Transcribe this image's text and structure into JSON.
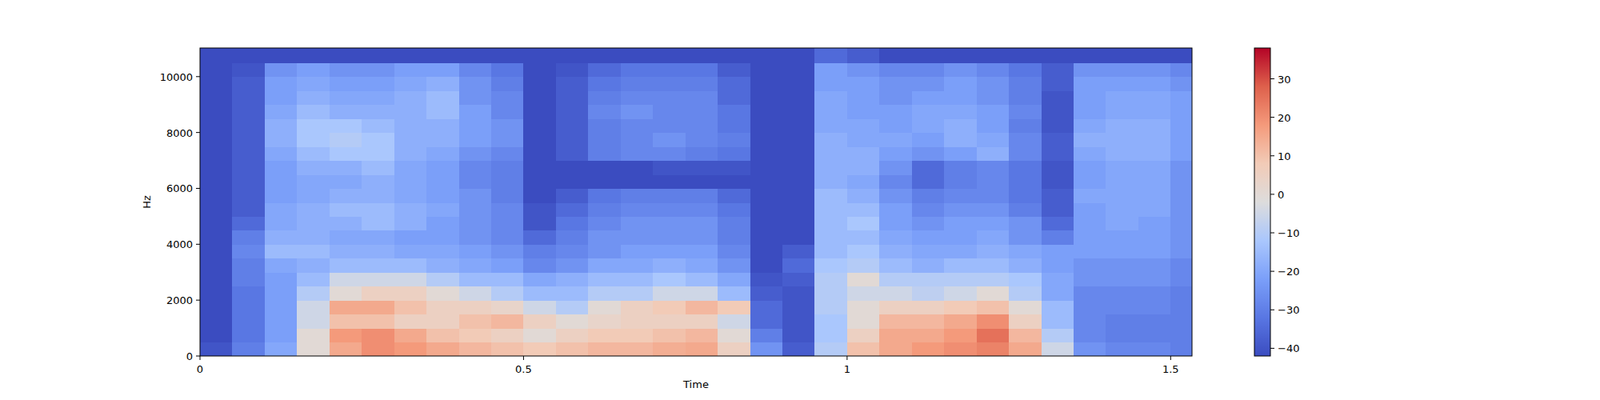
{
  "chart_data": {
    "type": "heatmap",
    "x_label": "Time",
    "y_label": "Hz",
    "xlim": [
      0,
      1.533
    ],
    "ylim": [
      0,
      11025
    ],
    "xticks": [
      0,
      0.5,
      1,
      1.5
    ],
    "yticks": [
      0,
      2000,
      4000,
      6000,
      8000,
      10000
    ],
    "x": [
      0,
      0.05,
      0.1,
      0.15,
      0.2,
      0.25,
      0.3,
      0.35,
      0.4,
      0.45,
      0.5,
      0.55,
      0.6,
      0.65,
      0.7,
      0.75,
      0.8,
      0.85,
      0.9,
      0.95,
      1.0,
      1.05,
      1.1,
      1.15,
      1.2,
      1.25,
      1.3,
      1.35,
      1.4,
      1.45,
      1.5
    ],
    "y": [
      0,
      500,
      1000,
      1500,
      2000,
      2500,
      3000,
      3500,
      4000,
      4500,
      5000,
      5500,
      6000,
      6500,
      7000,
      7500,
      8000,
      8500,
      9000,
      9500,
      10000,
      10500
    ],
    "values": [
      [
        -40,
        -30,
        -20,
        0,
        15,
        20,
        18,
        15,
        12,
        10,
        8,
        10,
        12,
        12,
        14,
        15,
        5,
        -25,
        -38,
        -10,
        10,
        15,
        18,
        20,
        22,
        15,
        -5,
        -25,
        -28,
        -28,
        -30
      ],
      [
        -42,
        -32,
        -22,
        0,
        18,
        20,
        15,
        10,
        8,
        5,
        0,
        5,
        8,
        8,
        10,
        12,
        0,
        -30,
        -40,
        -12,
        5,
        15,
        15,
        18,
        25,
        12,
        -10,
        -28,
        -30,
        -30,
        -30
      ],
      [
        -42,
        -32,
        -22,
        -5,
        10,
        10,
        5,
        5,
        10,
        12,
        5,
        0,
        3,
        5,
        5,
        5,
        -5,
        -35,
        -40,
        -12,
        0,
        12,
        12,
        15,
        20,
        5,
        -15,
        -28,
        -30,
        -30,
        -30
      ],
      [
        -42,
        -32,
        -22,
        -5,
        15,
        15,
        10,
        5,
        5,
        3,
        -5,
        -10,
        0,
        5,
        8,
        12,
        8,
        -35,
        -40,
        -10,
        0,
        5,
        5,
        8,
        10,
        0,
        -15,
        -28,
        -28,
        -28,
        -30
      ],
      [
        -42,
        -32,
        -22,
        -10,
        0,
        5,
        5,
        0,
        -5,
        -10,
        -15,
        -15,
        -10,
        -10,
        -5,
        -5,
        -15,
        -38,
        -40,
        -10,
        -5,
        -5,
        -8,
        -5,
        0,
        -10,
        -20,
        -28,
        -28,
        -28,
        -30
      ],
      [
        -42,
        -30,
        -22,
        -15,
        -5,
        -5,
        -5,
        -10,
        -15,
        -15,
        -20,
        -18,
        -15,
        -15,
        -12,
        -15,
        -20,
        -40,
        -38,
        -10,
        0,
        -10,
        -10,
        -10,
        -10,
        -12,
        -20,
        -25,
        -25,
        -25,
        -28
      ],
      [
        -42,
        -30,
        -20,
        -18,
        -15,
        -15,
        -15,
        -18,
        -20,
        -22,
        -28,
        -25,
        -20,
        -20,
        -18,
        -20,
        -25,
        -42,
        -35,
        -12,
        -10,
        -15,
        -18,
        -15,
        -15,
        -18,
        -22,
        -25,
        -25,
        -25,
        -28
      ],
      [
        -42,
        -28,
        -15,
        -15,
        -18,
        -18,
        -20,
        -20,
        -22,
        -25,
        -30,
        -28,
        -25,
        -22,
        -22,
        -22,
        -28,
        -42,
        -38,
        -15,
        -12,
        -18,
        -20,
        -20,
        -18,
        -20,
        -22,
        -22,
        -22,
        -22,
        -25
      ],
      [
        -42,
        -30,
        -18,
        -18,
        -20,
        -20,
        -22,
        -22,
        -25,
        -28,
        -35,
        -30,
        -25,
        -25,
        -25,
        -25,
        -30,
        -42,
        -42,
        -15,
        -15,
        -20,
        -22,
        -22,
        -20,
        -25,
        -30,
        -22,
        -22,
        -22,
        -25
      ],
      [
        -42,
        -35,
        -20,
        -18,
        -18,
        -15,
        -18,
        -22,
        -25,
        -28,
        -40,
        -32,
        -28,
        -25,
        -25,
        -25,
        -30,
        -42,
        -42,
        -15,
        -12,
        -22,
        -25,
        -22,
        -22,
        -25,
        -35,
        -22,
        -20,
        -22,
        -25
      ],
      [
        -42,
        -38,
        -20,
        -18,
        -15,
        -15,
        -18,
        -20,
        -25,
        -28,
        -40,
        -35,
        -30,
        -28,
        -28,
        -28,
        -32,
        -42,
        -42,
        -15,
        -15,
        -22,
        -28,
        -25,
        -25,
        -30,
        -38,
        -22,
        -20,
        -20,
        -25
      ],
      [
        -42,
        -38,
        -22,
        -20,
        -18,
        -18,
        -20,
        -22,
        -25,
        -30,
        -42,
        -38,
        -32,
        -30,
        -30,
        -30,
        -35,
        -42,
        -42,
        -15,
        -18,
        -25,
        -30,
        -28,
        -28,
        -32,
        -38,
        -20,
        -20,
        -20,
        -25
      ],
      [
        -42,
        -38,
        -22,
        -20,
        -20,
        -18,
        -20,
        -22,
        -28,
        -30,
        -42,
        -42,
        -42,
        -42,
        -42,
        -42,
        -42,
        -42,
        -42,
        -18,
        -20,
        -28,
        -35,
        -30,
        -28,
        -32,
        -40,
        -22,
        -20,
        -20,
        -25
      ],
      [
        -42,
        -38,
        -22,
        -18,
        -18,
        -15,
        -20,
        -22,
        -28,
        -30,
        -42,
        -42,
        -42,
        -42,
        -40,
        -40,
        -40,
        -42,
        -42,
        -18,
        -18,
        -25,
        -35,
        -30,
        -28,
        -32,
        -40,
        -22,
        -20,
        -20,
        -25
      ],
      [
        -42,
        -38,
        -20,
        -15,
        -12,
        -12,
        -18,
        -20,
        -25,
        -28,
        -42,
        -38,
        -30,
        -28,
        -28,
        -30,
        -32,
        -42,
        -42,
        -18,
        -18,
        -22,
        -25,
        -22,
        -18,
        -28,
        -38,
        -20,
        -18,
        -18,
        -22
      ],
      [
        -42,
        -38,
        -18,
        -12,
        -10,
        -12,
        -18,
        -18,
        -22,
        -25,
        -42,
        -38,
        -30,
        -28,
        -25,
        -28,
        -30,
        -42,
        -42,
        -18,
        -20,
        -20,
        -22,
        -18,
        -20,
        -28,
        -38,
        -18,
        -18,
        -18,
        -22
      ],
      [
        -42,
        -38,
        -18,
        -12,
        -12,
        -15,
        -18,
        -18,
        -22,
        -25,
        -42,
        -38,
        -30,
        -28,
        -28,
        -28,
        -32,
        -42,
        -42,
        -20,
        -20,
        -22,
        -20,
        -18,
        -22,
        -30,
        -40,
        -20,
        -18,
        -18,
        -22
      ],
      [
        -42,
        -38,
        -20,
        -15,
        -18,
        -18,
        -18,
        -15,
        -22,
        -28,
        -42,
        -38,
        -28,
        -25,
        -28,
        -28,
        -32,
        -42,
        -42,
        -20,
        -22,
        -22,
        -20,
        -20,
        -22,
        -28,
        -40,
        -22,
        -20,
        -20,
        -22
      ],
      [
        -42,
        -38,
        -22,
        -18,
        -20,
        -20,
        -18,
        -15,
        -25,
        -28,
        -42,
        -38,
        -30,
        -28,
        -28,
        -28,
        -35,
        -42,
        -42,
        -20,
        -22,
        -25,
        -22,
        -22,
        -25,
        -30,
        -40,
        -22,
        -20,
        -20,
        -22
      ],
      [
        -42,
        -38,
        -22,
        -20,
        -22,
        -22,
        -20,
        -18,
        -25,
        -30,
        -42,
        -38,
        -32,
        -30,
        -30,
        -30,
        -35,
        -42,
        -42,
        -22,
        -22,
        -25,
        -25,
        -22,
        -25,
        -30,
        -38,
        -22,
        -22,
        -22,
        -25
      ],
      [
        -42,
        -40,
        -25,
        -22,
        -25,
        -25,
        -22,
        -22,
        -28,
        -32,
        -42,
        -40,
        -35,
        -32,
        -32,
        -32,
        -38,
        -42,
        -42,
        -22,
        -25,
        -28,
        -28,
        -25,
        -28,
        -32,
        -38,
        -25,
        -25,
        -25,
        -28
      ],
      [
        -42,
        -42,
        -42,
        -42,
        -42,
        -42,
        -42,
        -42,
        -42,
        -42,
        -42,
        -42,
        -42,
        -42,
        -42,
        -42,
        -42,
        -42,
        -42,
        -35,
        -38,
        -42,
        -42,
        -42,
        -42,
        -42,
        -42,
        -42,
        -42,
        -42,
        -42
      ]
    ],
    "color_range": [
      -42,
      38
    ],
    "color_ticks": [
      {
        "value": -40,
        "label": "−40"
      },
      {
        "value": -30,
        "label": "−30"
      },
      {
        "value": -20,
        "label": "−20"
      },
      {
        "value": -10,
        "label": "−10"
      },
      0,
      10,
      20,
      30
    ]
  }
}
